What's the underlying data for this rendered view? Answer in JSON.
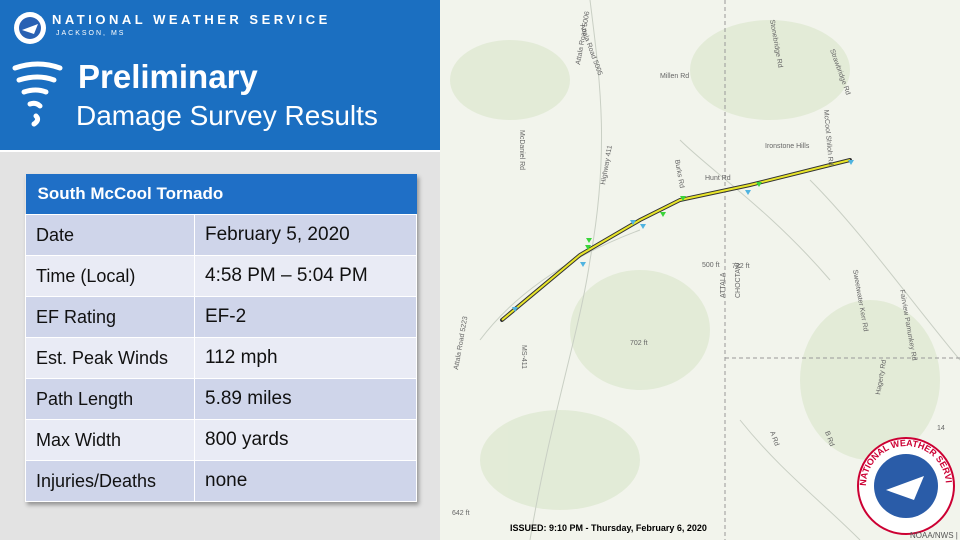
{
  "header": {
    "org": "NATIONAL WEATHER SERVICE",
    "office": "JACKSON, MS",
    "title_line1": "Preliminary",
    "title_line2": "Damage Survey Results"
  },
  "table": {
    "title": "South McCool Tornado",
    "rows": [
      [
        "Date",
        "February 5, 2020"
      ],
      [
        "Time (Local)",
        "4:58 PM – 5:04 PM"
      ],
      [
        "EF Rating",
        "EF-2"
      ],
      [
        "Est. Peak Winds",
        "112 mph"
      ],
      [
        "Path Length",
        "5.89 miles"
      ],
      [
        "Max Width",
        "800 yards"
      ],
      [
        "Injuries/Deaths",
        "none"
      ]
    ]
  },
  "map": {
    "issued": "ISSUED: 9:10 PM - Thursday, February 6, 2020",
    "labels": [
      "Attala Road 5006",
      "Attala Road 5005",
      "Stonebridge Rd",
      "Millen Rd",
      "Strawbridge Rd",
      "McDaniel Rd",
      "McCool Shiloh Rd",
      "Ironstone Hills",
      "Burks Rd",
      "Hunt Rd",
      "Highway 411",
      "ATTALA",
      "CHOCTAW",
      "722 ft",
      "702 ft",
      "500 ft",
      "Sweetwater Kerr Rd",
      "Fairview Pamunkey Rd",
      "Hagerty Rd",
      "A Rd",
      "B Rd",
      "MS-411",
      "Attala Road 5223",
      "642 ft",
      "14"
    ],
    "credit": "NOAA/NWS | E",
    "logo_text": "NATIONAL WEATHER SERVICE"
  }
}
